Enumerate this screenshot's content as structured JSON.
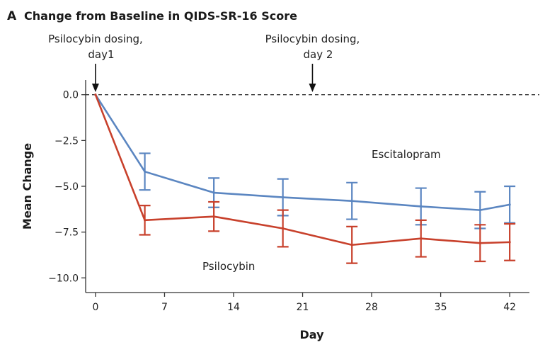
{
  "chart_data": {
    "type": "line",
    "panel_label": "A",
    "title": "Change from Baseline in QIDS-SR-16 Score",
    "xlabel": "Day",
    "ylabel": "Mean Change",
    "xlim": [
      -1,
      44
    ],
    "ylim": [
      -10.8,
      0.8
    ],
    "xticks": [
      0,
      7,
      14,
      21,
      28,
      35,
      42
    ],
    "yticks": [
      0.0,
      -2.5,
      -5.0,
      -7.5,
      -10.0
    ],
    "ytick_labels": [
      "0.0",
      "−2.5",
      "−5.0",
      "−7.5",
      "−10.0"
    ],
    "baseline": 0,
    "annotations": [
      {
        "lines": [
          "Psilocybin dosing,",
          "day1"
        ],
        "x": 0
      },
      {
        "lines": [
          "Psilocybin dosing,",
          "day 2"
        ],
        "x": 22
      }
    ],
    "series": [
      {
        "name": "Escitalopram",
        "color": "#5b86c1",
        "x": [
          0,
          5,
          12,
          19,
          26,
          33,
          39,
          42
        ],
        "y": [
          0,
          -4.2,
          -5.35,
          -5.6,
          -5.8,
          -6.1,
          -6.3,
          -6.0
        ],
        "err": [
          0,
          1.0,
          0.8,
          1.0,
          1.0,
          1.0,
          1.0,
          1.0
        ]
      },
      {
        "name": "Psilocybin",
        "color": "#c8412c",
        "x": [
          0,
          5,
          12,
          19,
          26,
          33,
          39,
          42
        ],
        "y": [
          0,
          -6.85,
          -6.65,
          -7.3,
          -8.2,
          -7.85,
          -8.1,
          -8.05
        ],
        "err": [
          0,
          0.8,
          0.8,
          1.0,
          1.0,
          1.0,
          1.0,
          1.0
        ]
      }
    ]
  }
}
